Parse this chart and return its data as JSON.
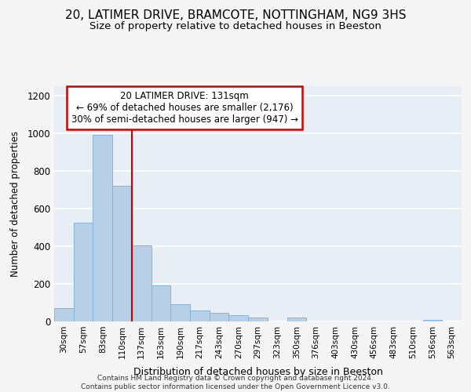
{
  "title_line1": "20, LATIMER DRIVE, BRAMCOTE, NOTTINGHAM, NG9 3HS",
  "title_line2": "Size of property relative to detached houses in Beeston",
  "xlabel": "Distribution of detached houses by size in Beeston",
  "ylabel": "Number of detached properties",
  "bar_values": [
    70,
    525,
    990,
    720,
    405,
    190,
    90,
    60,
    45,
    35,
    20,
    0,
    20,
    0,
    0,
    0,
    0,
    0,
    0,
    10,
    0
  ],
  "categories": [
    "30sqm",
    "57sqm",
    "83sqm",
    "110sqm",
    "137sqm",
    "163sqm",
    "190sqm",
    "217sqm",
    "243sqm",
    "270sqm",
    "297sqm",
    "323sqm",
    "350sqm",
    "376sqm",
    "403sqm",
    "430sqm",
    "456sqm",
    "483sqm",
    "510sqm",
    "536sqm",
    "563sqm"
  ],
  "bar_color": "#b8cfe8",
  "bar_edge_color": "#7bafd4",
  "vline_x": 3.5,
  "vline_color": "#cc0000",
  "annotation_text": "20 LATIMER DRIVE: 131sqm\n← 69% of detached houses are smaller (2,176)\n30% of semi-detached houses are larger (947) →",
  "annotation_box_color": "#cc0000",
  "ylim": [
    0,
    1250
  ],
  "yticks": [
    0,
    200,
    400,
    600,
    800,
    1000,
    1200
  ],
  "background_color": "#e8eef5",
  "grid_color": "#ffffff",
  "footer": "Contains HM Land Registry data © Crown copyright and database right 2024.\nContains public sector information licensed under the Open Government Licence v3.0."
}
